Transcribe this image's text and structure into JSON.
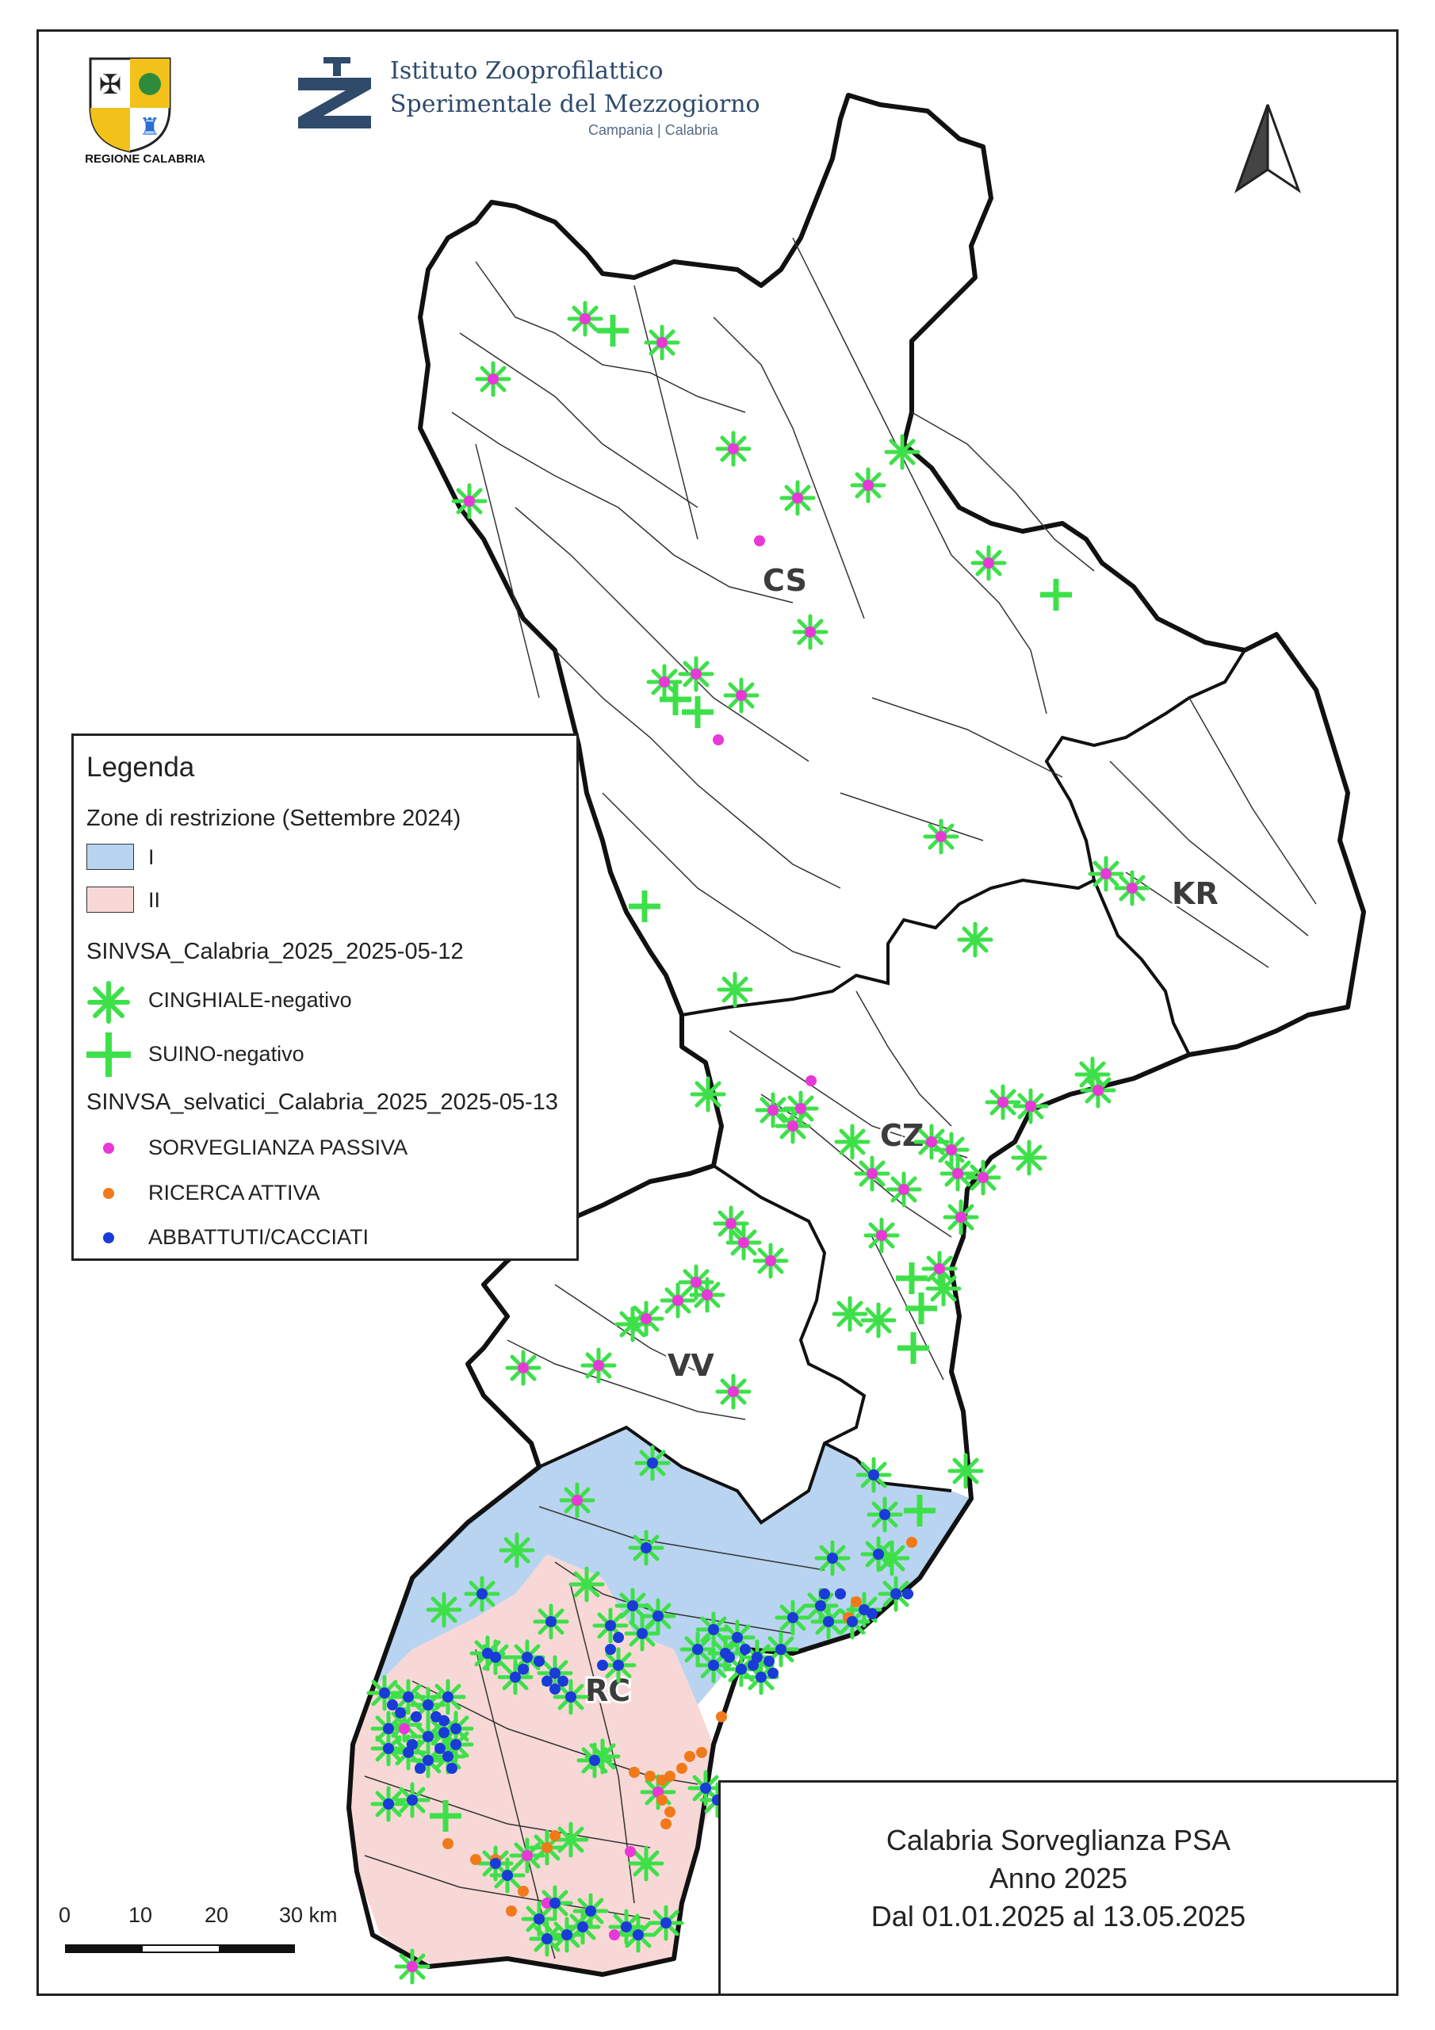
{
  "header": {
    "region_logo_caption": "REGIONE CALABRIA",
    "institute_line1": "Istituto Zooprofilattico",
    "institute_line2": "Sperimentale del Mezzogiorno",
    "institute_line3": "Campania | Calabria"
  },
  "map": {
    "province_labels": [
      "CS",
      "KR",
      "CZ",
      "VV",
      "RC"
    ],
    "colors": {
      "zone_I": "#b9d4f0",
      "zone_II": "#f8d8d6",
      "cinghiale": "#3ee04a",
      "suino": "#3ee04a",
      "passiva": "#e838d8",
      "attiva": "#f07a1a",
      "abbattuti": "#1a3bd8",
      "border": "#111111"
    }
  },
  "legend": {
    "title": "Legenda",
    "zones_heading": "Zone di restrizione (Settembre 2024)",
    "zone_I_label": "I",
    "zone_II_label": "II",
    "layer1_heading": "SINVSA_Calabria_2025_2025-05-12",
    "cinghiale_label": "CINGHIALE-negativo",
    "suino_label": "SUINO-negativo",
    "layer2_heading": "SINVSA_selvatici_Calabria_2025_2025-05-13",
    "passiva_label": "SORVEGLIANZA PASSIVA",
    "attiva_label": "RICERCA ATTIVA",
    "abbattuti_label": "ABBATTUTI/CACCIATI"
  },
  "title_box": {
    "line1": "Calabria Sorveglianza PSA",
    "line2": "Anno 2025",
    "line3": "Dal 01.01.2025 al 13.05.2025"
  },
  "scale": {
    "labels": [
      "0",
      "10",
      "20",
      "30 km"
    ]
  },
  "icons": {
    "north_arrow": "north-arrow-icon",
    "region_logo": "regione-calabria-logo",
    "institute_logo": "izs-logo"
  }
}
